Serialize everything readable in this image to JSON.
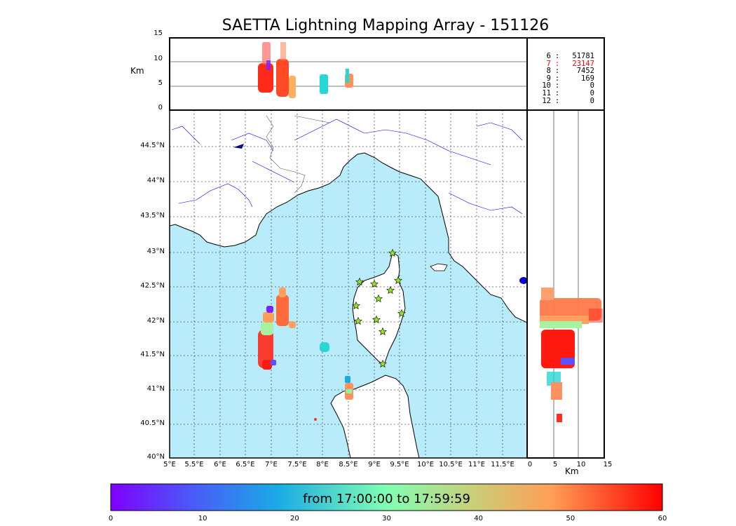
{
  "title": "SAETTA Lightning Mapping Array - 151126",
  "top_panel": {
    "ylabel": "Km",
    "yticks": [
      "15",
      "10",
      "5",
      "0"
    ]
  },
  "right_panel": {
    "xlabel": "Km",
    "xticks": [
      "0",
      "5",
      "10",
      "15"
    ]
  },
  "station_counts": [
    {
      "level": "6",
      "count": "51781",
      "color": "#000000"
    },
    {
      "level": "7",
      "count": "23147",
      "color": "#ff0000"
    },
    {
      "level": "8",
      "count": "7452",
      "color": "#000000"
    },
    {
      "level": "9",
      "count": "169",
      "color": "#000000"
    },
    {
      "level": "10",
      "count": "0",
      "color": "#000000"
    },
    {
      "level": "11",
      "count": "0",
      "color": "#000000"
    },
    {
      "level": "12",
      "count": "0",
      "color": "#000000"
    }
  ],
  "map": {
    "lat_labels": [
      "44.5°N",
      "44°N",
      "43.5°N",
      "43°N",
      "42.5°N",
      "42°N",
      "41.5°N",
      "41°N",
      "40.5°N",
      "40°N"
    ],
    "lon_labels": [
      "5°E",
      "5.5°E",
      "6°E",
      "6.5°E",
      "7°E",
      "7.5°E",
      "8°E",
      "8.5°E",
      "9°E",
      "9.5°E",
      "10°E",
      "10.5°E",
      "11°E",
      "11.5°E"
    ],
    "sea_color": "#b8ecfa",
    "land_color": "#ffffff",
    "station_marker_color": "#8fe22b"
  },
  "colorbar": {
    "label": "from 17:00:00 to 17:59:59",
    "ticks": [
      "0",
      "10",
      "20",
      "30",
      "40",
      "50",
      "60"
    ],
    "colormap": "rainbow"
  }
}
